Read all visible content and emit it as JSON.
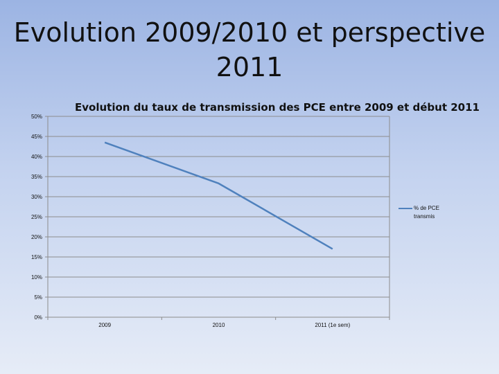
{
  "slide": {
    "title": "Evolution 2009/2010 et perspective 2011"
  },
  "chart_data": {
    "type": "line",
    "title": "Evolution du taux de transmission des PCE entre 2009 et début 2011",
    "categories": [
      "2009",
      "2010",
      "2011 (1e sem)"
    ],
    "series": [
      {
        "name": "% de PCE transmis",
        "values": [
          43.5,
          33.3,
          17.0
        ],
        "color": "#4f81bd"
      }
    ],
    "ylim": [
      0,
      50
    ],
    "yticks": [
      "0%",
      "5%",
      "10%",
      "15%",
      "20%",
      "25%",
      "30%",
      "35%",
      "40%",
      "45%",
      "50%"
    ],
    "xlabel": "",
    "ylabel": "",
    "grid": true,
    "legend": "right"
  }
}
